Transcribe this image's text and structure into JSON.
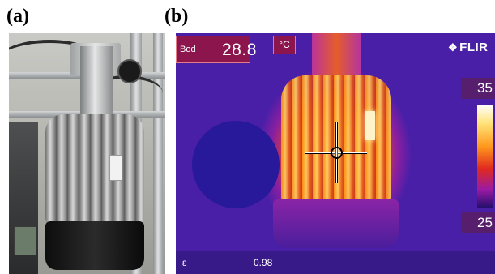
{
  "figure": {
    "panel_a_label": "(a)",
    "panel_b_label": "(b)"
  },
  "thermal": {
    "spot_label": "Bod",
    "spot_value": "28.8",
    "unit": "°C",
    "brand": "FLIR",
    "scale_max": "35",
    "scale_min": "25",
    "emissivity_symbol": "ε",
    "emissivity_value": "0.98",
    "palette": [
      "#ffffff",
      "#ffe37a",
      "#ff9a1e",
      "#e0291f",
      "#9a1aa3",
      "#1f0f6b"
    ]
  }
}
